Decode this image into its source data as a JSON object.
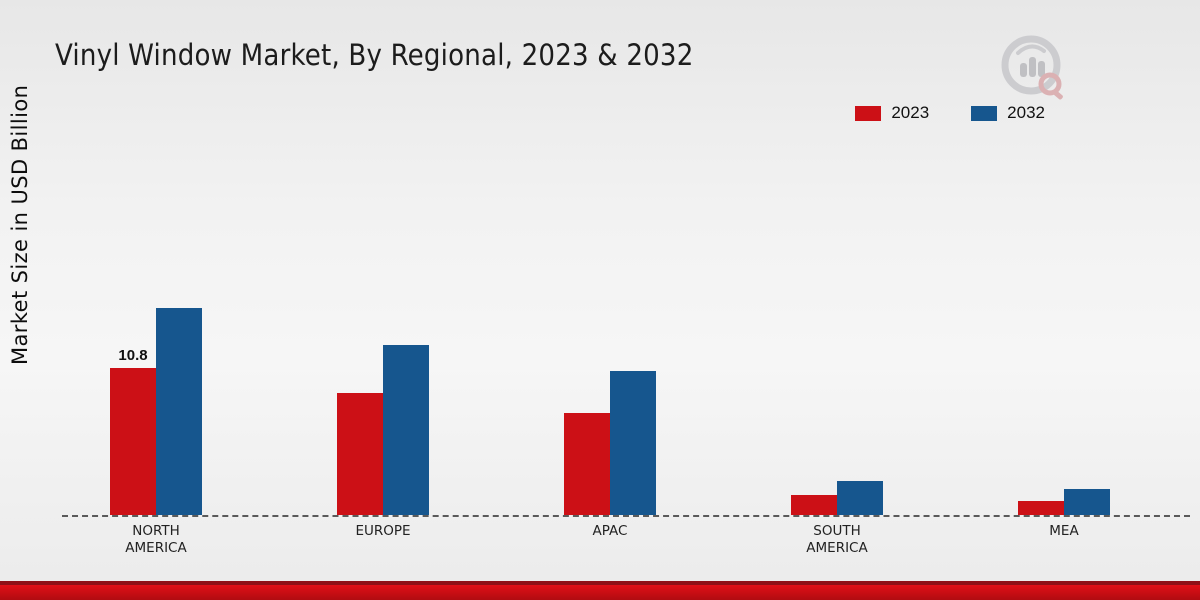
{
  "chart_data": {
    "type": "bar",
    "title": "Vinyl Window Market, By Regional, 2023 & 2032",
    "ylabel": "Market Size in USD Billion",
    "xlabel": "",
    "categories": [
      "NORTH AMERICA",
      "EUROPE",
      "APAC",
      "SOUTH AMERICA",
      "MEA"
    ],
    "series": [
      {
        "name": "2023",
        "color": "#cc1016",
        "values": [
          10.8,
          9.0,
          7.5,
          1.5,
          1.0
        ]
      },
      {
        "name": "2032",
        "color": "#16568e",
        "values": [
          15.2,
          12.5,
          10.6,
          2.5,
          1.9
        ]
      }
    ],
    "annotations": [
      {
        "series_index": 0,
        "category_index": 0,
        "text": "10.8"
      }
    ],
    "ylim": [
      0,
      16
    ],
    "grid": false,
    "legend_position": "top-right",
    "baseline_style": "dashed"
  },
  "branding": {
    "logo_name": "market-research-chart-logo",
    "accent_red": "#c40d13",
    "accent_dark_red": "#8e1118"
  }
}
